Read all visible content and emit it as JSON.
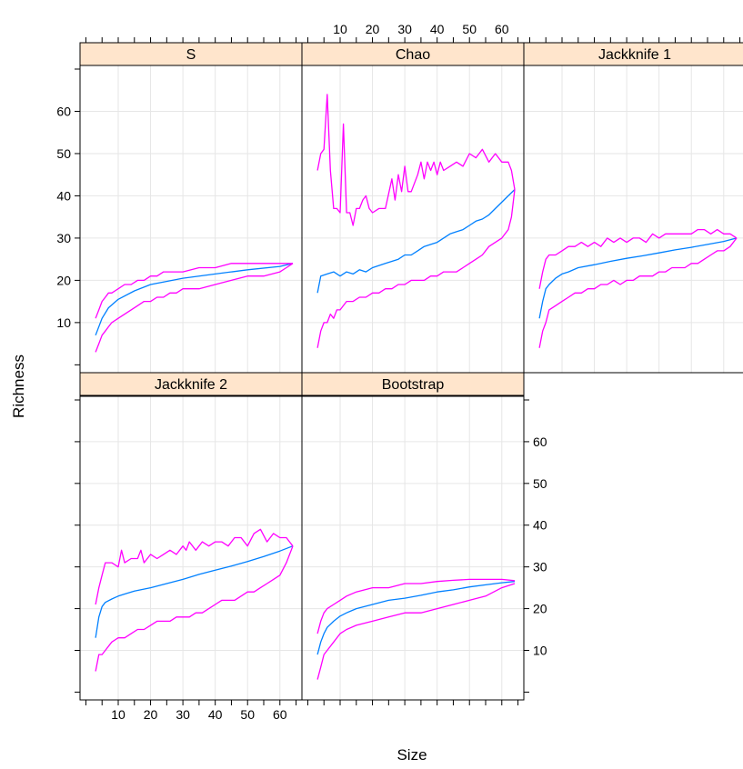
{
  "chart_data": {
    "type": "line",
    "layout": "lattice 3x2 panels",
    "xlabel": "Size",
    "ylabel": "Richness",
    "xlim": [
      1,
      64
    ],
    "ylim": [
      -1,
      70
    ],
    "x_ticks": [
      10,
      20,
      30,
      40,
      50,
      60
    ],
    "y_ticks": [
      10,
      20,
      30,
      40,
      50,
      60
    ],
    "grid": true,
    "colors": {
      "estimate": "#0080ff",
      "bounds": "#ff00ff",
      "strip": "#ffe5cc",
      "grid": "#e6e6e6"
    },
    "panels": [
      {
        "title": "S",
        "series": [
          {
            "role": "estimate",
            "x": [
              3,
              5,
              7,
              10,
              15,
              20,
              30,
              40,
              50,
              60,
              64
            ],
            "y": [
              7,
              11,
              13.5,
              15.5,
              17.5,
              19,
              20.5,
              21.5,
              22.5,
              23.3,
              24
            ]
          },
          {
            "role": "upper",
            "x": [
              3,
              4,
              5,
              6,
              7,
              8,
              10,
              12,
              14,
              16,
              18,
              20,
              22,
              24,
              26,
              28,
              30,
              35,
              40,
              45,
              50,
              55,
              60,
              62,
              64
            ],
            "y": [
              11,
              13,
              15,
              16,
              17,
              17,
              18,
              19,
              19,
              20,
              20,
              21,
              21,
              22,
              22,
              22,
              22,
              23,
              23,
              24,
              24,
              24,
              24,
              24,
              24
            ]
          },
          {
            "role": "lower",
            "x": [
              3,
              4,
              5,
              6,
              7,
              8,
              10,
              12,
              14,
              16,
              18,
              20,
              22,
              24,
              26,
              28,
              30,
              35,
              40,
              45,
              50,
              55,
              60,
              62,
              64
            ],
            "y": [
              3,
              5,
              7,
              8,
              9,
              10,
              11,
              12,
              13,
              14,
              15,
              15,
              16,
              16,
              17,
              17,
              18,
              18,
              19,
              20,
              21,
              21,
              22,
              23,
              24
            ]
          }
        ]
      },
      {
        "title": "Chao",
        "series": [
          {
            "role": "estimate",
            "x": [
              3,
              4,
              6,
              8,
              10,
              12,
              14,
              16,
              18,
              20,
              22,
              24,
              26,
              28,
              30,
              32,
              34,
              36,
              38,
              40,
              42,
              44,
              46,
              48,
              50,
              52,
              54,
              56,
              58,
              60,
              62,
              64
            ],
            "y": [
              17,
              21,
              21.5,
              22,
              21,
              22,
              21.5,
              22.5,
              22,
              23,
              23.5,
              24,
              24.5,
              25,
              26,
              26,
              27,
              28,
              28.5,
              29,
              30,
              31,
              31.5,
              32,
              33,
              34,
              34.5,
              35.5,
              37,
              38.5,
              40,
              41.5
            ]
          },
          {
            "role": "upper",
            "x": [
              3,
              4,
              5,
              6,
              7,
              8,
              9,
              10,
              11,
              12,
              13,
              14,
              15,
              16,
              17,
              18,
              19,
              20,
              22,
              24,
              26,
              27,
              28,
              29,
              30,
              31,
              32,
              34,
              35,
              36,
              37,
              38,
              39,
              40,
              41,
              42,
              44,
              46,
              48,
              50,
              52,
              54,
              56,
              58,
              60,
              62,
              63,
              64
            ],
            "y": [
              46,
              50,
              51,
              64,
              46,
              37,
              37,
              36,
              57,
              36,
              36,
              33,
              37,
              37,
              39,
              40,
              37,
              36,
              37,
              37,
              44,
              39,
              45,
              41,
              47,
              41,
              41,
              45,
              48,
              44,
              48,
              46,
              48,
              45,
              48,
              46,
              47,
              48,
              47,
              50,
              49,
              51,
              48,
              50,
              48,
              48,
              46,
              41.5
            ]
          },
          {
            "role": "lower",
            "x": [
              3,
              4,
              5,
              6,
              7,
              8,
              9,
              10,
              12,
              14,
              16,
              18,
              20,
              22,
              24,
              26,
              28,
              30,
              32,
              34,
              36,
              38,
              40,
              42,
              44,
              46,
              48,
              50,
              52,
              54,
              56,
              58,
              60,
              62,
              63,
              64
            ],
            "y": [
              4,
              8,
              10,
              10,
              12,
              11,
              13,
              13,
              15,
              15,
              16,
              16,
              17,
              17,
              18,
              18,
              19,
              19,
              20,
              20,
              20,
              21,
              21,
              22,
              22,
              22,
              23,
              24,
              25,
              26,
              28,
              29,
              30,
              32,
              35,
              41.5
            ]
          }
        ]
      },
      {
        "title": "Jackknife 1",
        "series": [
          {
            "role": "estimate",
            "x": [
              3,
              4,
              5,
              6,
              8,
              10,
              12,
              15,
              20,
              25,
              30,
              35,
              40,
              45,
              50,
              55,
              60,
              64
            ],
            "y": [
              11,
              15,
              18,
              19,
              20.5,
              21.5,
              22,
              23,
              23.7,
              24.5,
              25.2,
              25.8,
              26.5,
              27.2,
              27.8,
              28.5,
              29.2,
              30
            ]
          },
          {
            "role": "upper",
            "x": [
              3,
              4,
              5,
              6,
              8,
              10,
              12,
              14,
              16,
              18,
              20,
              22,
              24,
              26,
              28,
              30,
              32,
              34,
              36,
              38,
              40,
              42,
              44,
              46,
              48,
              50,
              52,
              54,
              56,
              58,
              60,
              62,
              64
            ],
            "y": [
              18,
              22,
              25,
              26,
              26,
              27,
              28,
              28,
              29,
              28,
              29,
              28,
              30,
              29,
              30,
              29,
              30,
              30,
              29,
              31,
              30,
              31,
              31,
              31,
              31,
              31,
              32,
              32,
              31,
              32,
              31,
              31,
              30
            ]
          },
          {
            "role": "lower",
            "x": [
              3,
              4,
              5,
              6,
              8,
              10,
              12,
              14,
              16,
              18,
              20,
              22,
              24,
              26,
              28,
              30,
              32,
              34,
              36,
              38,
              40,
              42,
              44,
              46,
              48,
              50,
              52,
              54,
              56,
              58,
              60,
              62,
              64
            ],
            "y": [
              4,
              8,
              10,
              13,
              14,
              15,
              16,
              17,
              17,
              18,
              18,
              19,
              19,
              20,
              19,
              20,
              20,
              21,
              21,
              21,
              22,
              22,
              23,
              23,
              23,
              24,
              24,
              25,
              26,
              27,
              27,
              28,
              30
            ]
          }
        ]
      },
      {
        "title": "Jackknife 2",
        "series": [
          {
            "role": "estimate",
            "x": [
              3,
              4,
              5,
              6,
              8,
              10,
              12,
              15,
              20,
              25,
              30,
              35,
              40,
              45,
              50,
              55,
              60,
              64
            ],
            "y": [
              13,
              18,
              20.5,
              21.5,
              22.3,
              23,
              23.5,
              24.2,
              25,
              26,
              27,
              28.2,
              29.2,
              30.2,
              31.3,
              32.5,
              33.8,
              35
            ]
          },
          {
            "role": "upper",
            "x": [
              3,
              4,
              5,
              6,
              8,
              10,
              11,
              12,
              14,
              16,
              17,
              18,
              20,
              22,
              24,
              26,
              28,
              30,
              31,
              32,
              34,
              36,
              38,
              40,
              42,
              44,
              46,
              48,
              50,
              52,
              54,
              56,
              58,
              60,
              62,
              63,
              64
            ],
            "y": [
              21,
              25,
              28,
              31,
              31,
              30,
              34,
              31,
              32,
              32,
              34,
              31,
              33,
              32,
              33,
              34,
              33,
              35,
              34,
              36,
              34,
              36,
              35,
              36,
              36,
              35,
              37,
              37,
              35,
              38,
              39,
              36,
              38,
              37,
              37,
              36,
              35
            ]
          },
          {
            "role": "lower",
            "x": [
              3,
              4,
              5,
              6,
              8,
              10,
              12,
              14,
              16,
              18,
              20,
              22,
              24,
              26,
              28,
              30,
              32,
              34,
              36,
              38,
              40,
              42,
              44,
              46,
              48,
              50,
              52,
              54,
              56,
              58,
              60,
              62,
              64
            ],
            "y": [
              5,
              9,
              9,
              10,
              12,
              13,
              13,
              14,
              15,
              15,
              16,
              17,
              17,
              17,
              18,
              18,
              18,
              19,
              19,
              20,
              21,
              22,
              22,
              22,
              23,
              24,
              24,
              25,
              26,
              27,
              28,
              31,
              35
            ]
          }
        ]
      },
      {
        "title": "Bootstrap",
        "series": [
          {
            "role": "estimate",
            "x": [
              3,
              4,
              5,
              6,
              8,
              10,
              12,
              15,
              20,
              25,
              30,
              35,
              40,
              45,
              50,
              55,
              60,
              64
            ],
            "y": [
              9,
              12,
              14,
              15.5,
              17,
              18.2,
              19,
              20,
              21,
              22,
              22.5,
              23.2,
              24,
              24.5,
              25.2,
              25.7,
              26.2,
              26.5
            ]
          },
          {
            "role": "upper",
            "x": [
              3,
              4,
              5,
              6,
              8,
              10,
              12,
              15,
              20,
              25,
              30,
              35,
              40,
              45,
              50,
              55,
              60,
              64
            ],
            "y": [
              14,
              17,
              19,
              20,
              21,
              22,
              23,
              24,
              25,
              25,
              26,
              26,
              26.5,
              26.8,
              27,
              27,
              27,
              26.7
            ]
          },
          {
            "role": "lower",
            "x": [
              3,
              4,
              5,
              6,
              8,
              10,
              12,
              15,
              20,
              25,
              30,
              35,
              40,
              45,
              50,
              55,
              60,
              64
            ],
            "y": [
              3,
              6,
              9,
              10,
              12,
              14,
              15,
              16,
              17,
              18,
              19,
              19,
              20,
              21,
              22,
              23,
              25,
              26
            ]
          }
        ]
      }
    ]
  }
}
